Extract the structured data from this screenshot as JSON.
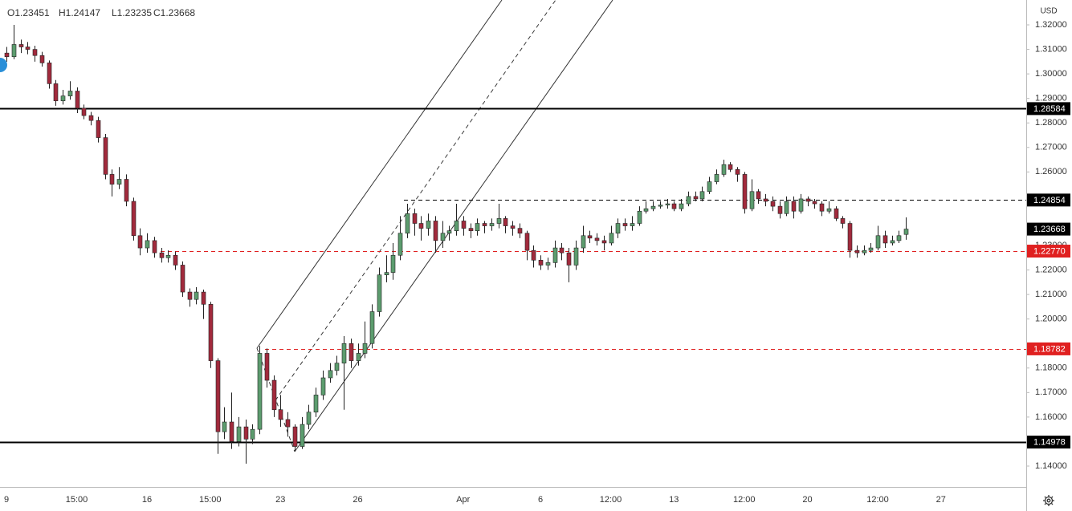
{
  "chart_data": {
    "type": "candlestick",
    "currency": "USD",
    "ohlc_header": [
      "O1.23451",
      "H1.24147",
      "L1.23235",
      "C1.23668"
    ],
    "categories": [
      "9",
      null,
      null,
      null,
      null,
      null,
      null,
      null,
      null,
      null,
      "15:00",
      null,
      null,
      null,
      null,
      null,
      null,
      null,
      null,
      null,
      "16",
      null,
      null,
      null,
      null,
      null,
      null,
      null,
      null,
      "15:00",
      null,
      null,
      null,
      null,
      null,
      null,
      null,
      null,
      null,
      "23",
      null,
      null,
      null,
      null,
      null,
      null,
      null,
      null,
      null,
      null,
      "26",
      null,
      null,
      null,
      null,
      null,
      null,
      null,
      null,
      null,
      null,
      null,
      null,
      null,
      null,
      "Apr",
      null,
      null,
      null,
      null,
      null,
      null,
      null,
      null,
      null,
      null,
      "6",
      null,
      null,
      null,
      null,
      null,
      null,
      null,
      null,
      null,
      "12:00",
      null,
      null,
      null,
      null,
      null,
      null,
      null,
      null,
      "13",
      null,
      null,
      null,
      null,
      null,
      null,
      null,
      null,
      null,
      "12:00",
      null,
      null,
      null,
      null,
      null,
      null,
      null,
      null,
      "20",
      null,
      null,
      null,
      null,
      null,
      null,
      null,
      null,
      null,
      "12:00",
      null,
      null,
      null,
      null,
      null,
      null,
      null,
      null,
      "27"
    ],
    "open": [
      1.3085,
      1.307,
      1.312,
      1.311,
      1.31,
      1.3075,
      1.3045,
      1.296,
      1.289,
      1.291,
      1.293,
      1.286,
      1.283,
      1.281,
      1.274,
      1.259,
      1.255,
      1.257,
      1.248,
      1.234,
      1.229,
      1.232,
      1.227,
      1.225,
      1.226,
      1.222,
      1.211,
      1.208,
      1.211,
      1.206,
      1.183,
      1.154,
      1.158,
      1.15,
      1.156,
      1.151,
      1.155,
      1.186,
      1.175,
      1.163,
      1.159,
      1.156,
      1.148,
      1.157,
      1.162,
      1.169,
      1.176,
      1.179,
      1.182,
      1.19,
      1.183,
      1.186,
      1.19,
      1.203,
      1.218,
      1.219,
      1.226,
      1.235,
      1.243,
      1.239,
      1.237,
      1.24,
      1.232,
      1.235,
      1.236,
      1.24,
      1.237,
      1.236,
      1.239,
      1.238,
      1.239,
      1.241,
      1.238,
      1.237,
      1.235,
      1.228,
      1.224,
      1.222,
      1.223,
      1.229,
      1.227,
      1.222,
      1.229,
      1.234,
      1.233,
      1.232,
      1.231,
      1.235,
      1.239,
      1.238,
      1.239,
      1.244,
      1.245,
      1.246,
      1.2465,
      1.247,
      1.245,
      1.247,
      1.25,
      1.249,
      1.252,
      1.256,
      1.259,
      1.263,
      1.261,
      1.259,
      1.245,
      1.252,
      1.249,
      1.248,
      1.246,
      1.243,
      1.248,
      1.244,
      1.249,
      1.248,
      1.247,
      1.244,
      1.245,
      1.241,
      1.239,
      1.228,
      1.227,
      1.228,
      1.229,
      1.234,
      1.231,
      1.232,
      1.23451,
      null,
      null,
      null,
      null,
      null
    ],
    "high": [
      1.311,
      1.32,
      1.314,
      1.313,
      1.3115,
      1.309,
      1.3055,
      1.2975,
      1.2935,
      1.297,
      1.2945,
      1.2875,
      1.2845,
      1.2825,
      1.2755,
      1.261,
      1.262,
      1.259,
      1.2495,
      1.237,
      1.235,
      1.2335,
      1.229,
      1.228,
      1.2275,
      1.2235,
      1.2125,
      1.213,
      1.212,
      1.207,
      1.184,
      1.164,
      1.17,
      1.16,
      1.159,
      1.157,
      1.189,
      1.188,
      1.177,
      1.169,
      1.162,
      1.157,
      1.16,
      1.165,
      1.172,
      1.179,
      1.182,
      1.185,
      1.193,
      1.192,
      1.19,
      1.199,
      1.206,
      1.221,
      1.226,
      1.231,
      1.242,
      1.247,
      1.245,
      1.242,
      1.243,
      1.242,
      1.24,
      1.238,
      1.247,
      1.242,
      1.239,
      1.241,
      1.24,
      1.241,
      1.247,
      1.242,
      1.24,
      1.239,
      1.236,
      1.23,
      1.226,
      1.225,
      1.232,
      1.231,
      1.229,
      1.232,
      1.238,
      1.236,
      1.235,
      1.234,
      1.238,
      1.241,
      1.241,
      1.242,
      1.246,
      1.248,
      1.248,
      1.248,
      1.249,
      1.248,
      1.249,
      1.252,
      1.252,
      1.254,
      1.258,
      1.261,
      1.265,
      1.264,
      1.262,
      1.26,
      1.257,
      1.253,
      1.251,
      1.25,
      1.248,
      1.25,
      1.25,
      1.251,
      1.25,
      1.249,
      1.248,
      1.248,
      1.246,
      1.242,
      1.24,
      1.23,
      1.23,
      1.231,
      1.238,
      1.236,
      1.234,
      1.236,
      1.24147,
      null,
      null,
      null,
      null,
      null
    ],
    "low": [
      1.305,
      1.306,
      1.3085,
      1.308,
      1.305,
      1.303,
      1.294,
      1.287,
      1.2875,
      1.2895,
      1.284,
      1.2815,
      1.279,
      1.272,
      1.257,
      1.25,
      1.253,
      1.246,
      1.232,
      1.226,
      1.227,
      1.225,
      1.223,
      1.223,
      1.22,
      1.209,
      1.205,
      1.206,
      1.2,
      1.18,
      1.145,
      1.151,
      1.147,
      1.148,
      1.141,
      1.149,
      1.153,
      1.172,
      1.16,
      1.156,
      1.152,
      1.146,
      1.147,
      1.155,
      1.16,
      1.167,
      1.174,
      1.177,
      1.163,
      1.18,
      1.181,
      1.184,
      1.188,
      1.201,
      1.215,
      1.216,
      1.224,
      1.233,
      1.234,
      1.232,
      1.234,
      1.227,
      1.229,
      1.232,
      1.234,
      1.234,
      1.233,
      1.234,
      1.235,
      1.236,
      1.237,
      1.235,
      1.234,
      1.233,
      1.224,
      1.221,
      1.22,
      1.22,
      1.221,
      1.224,
      1.215,
      1.22,
      1.227,
      1.231,
      1.23,
      1.228,
      1.23,
      1.233,
      1.236,
      1.236,
      1.238,
      1.243,
      1.244,
      1.245,
      1.245,
      1.244,
      1.244,
      1.246,
      1.248,
      1.248,
      1.251,
      1.255,
      1.258,
      1.26,
      1.256,
      1.243,
      1.244,
      1.247,
      1.246,
      1.244,
      1.241,
      1.242,
      1.241,
      1.243,
      1.246,
      1.245,
      1.242,
      1.243,
      1.24,
      1.237,
      1.225,
      1.225,
      1.226,
      1.227,
      1.228,
      1.229,
      1.23,
      1.231,
      1.23235,
      null,
      null,
      null,
      null,
      null
    ],
    "close": [
      1.307,
      1.312,
      1.311,
      1.31,
      1.3075,
      1.3045,
      1.296,
      1.289,
      1.291,
      1.293,
      1.286,
      1.283,
      1.281,
      1.274,
      1.259,
      1.255,
      1.257,
      1.248,
      1.234,
      1.229,
      1.232,
      1.227,
      1.225,
      1.226,
      1.222,
      1.211,
      1.208,
      1.211,
      1.206,
      1.183,
      1.154,
      1.158,
      1.15,
      1.156,
      1.151,
      1.155,
      1.186,
      1.175,
      1.163,
      1.159,
      1.156,
      1.148,
      1.157,
      1.162,
      1.169,
      1.176,
      1.179,
      1.182,
      1.19,
      1.183,
      1.186,
      1.19,
      1.203,
      1.218,
      1.219,
      1.226,
      1.235,
      1.243,
      1.239,
      1.237,
      1.24,
      1.232,
      1.235,
      1.236,
      1.24,
      1.237,
      1.236,
      1.239,
      1.238,
      1.239,
      1.241,
      1.238,
      1.237,
      1.235,
      1.228,
      1.224,
      1.222,
      1.223,
      1.229,
      1.227,
      1.222,
      1.229,
      1.234,
      1.233,
      1.232,
      1.231,
      1.235,
      1.239,
      1.238,
      1.239,
      1.244,
      1.245,
      1.246,
      1.2465,
      1.247,
      1.245,
      1.247,
      1.25,
      1.249,
      1.252,
      1.256,
      1.259,
      1.263,
      1.261,
      1.259,
      1.245,
      1.252,
      1.249,
      1.248,
      1.246,
      1.243,
      1.248,
      1.244,
      1.249,
      1.248,
      1.247,
      1.244,
      1.245,
      1.241,
      1.239,
      1.228,
      1.227,
      1.228,
      1.229,
      1.234,
      1.231,
      1.232,
      1.234,
      1.23668,
      null,
      null,
      null,
      null,
      null
    ],
    "up_color": "#5c9c6e",
    "down_color": "#a12a3c",
    "ylim": [
      1.13149,
      1.33015
    ],
    "yticks": [
      {
        "value": 1.14,
        "label": "1.14000"
      },
      {
        "value": 1.16,
        "label": "1.16000"
      },
      {
        "value": 1.17,
        "label": "1.17000"
      },
      {
        "value": 1.18,
        "label": "1.18000"
      },
      {
        "value": 1.2,
        "label": "1.20000"
      },
      {
        "value": 1.21,
        "label": "1.21000"
      },
      {
        "value": 1.22,
        "label": "1.22000"
      },
      {
        "value": 1.23,
        "label": "1.23000"
      },
      {
        "value": 1.26,
        "label": "1.26000"
      },
      {
        "value": 1.27,
        "label": "1.27000"
      },
      {
        "value": 1.28,
        "label": "1.28000"
      },
      {
        "value": 1.29,
        "label": "1.29000"
      },
      {
        "value": 1.3,
        "label": "1.30000"
      },
      {
        "value": 1.31,
        "label": "1.31000"
      },
      {
        "value": 1.32,
        "label": "1.32000"
      }
    ],
    "levels": [
      {
        "value": 1.28584,
        "color": "#000000",
        "style": "solid"
      },
      {
        "value": 1.24854,
        "color": "#000000",
        "style": "dashed"
      },
      {
        "value": 1.2277,
        "label": "1.22770",
        "color": "#e02020",
        "style": "dashed"
      },
      {
        "value": 1.18782,
        "color": "#e02020",
        "style": "dashed"
      },
      {
        "value": 1.14978,
        "color": "#000000",
        "style": "solid"
      }
    ],
    "last_price": 1.23668
  }
}
